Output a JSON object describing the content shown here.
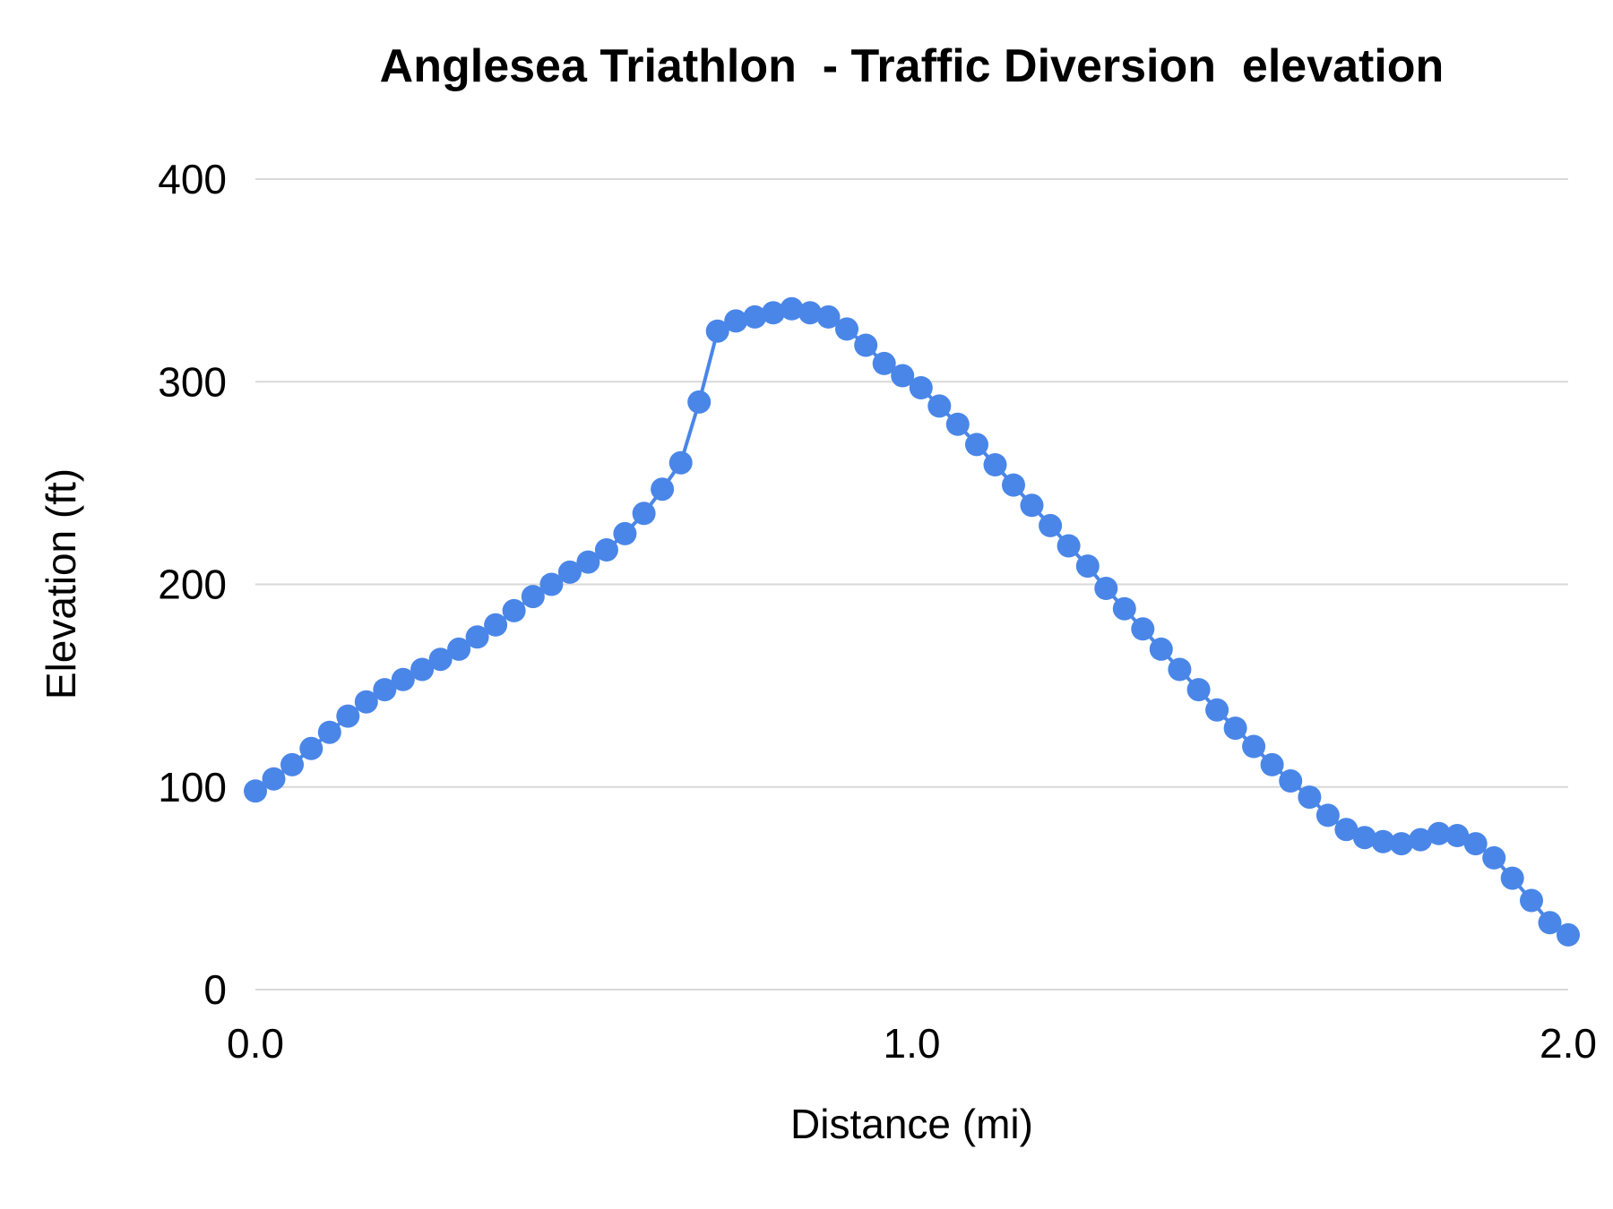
{
  "page": {
    "background": "#ffffff"
  },
  "chart_data": {
    "type": "line",
    "title": "Anglesea Triathlon  - Traffic Diversion  elevation",
    "xlabel": "Distance (mi)",
    "ylabel": "Elevation (ft)",
    "xlim": [
      0,
      2
    ],
    "ylim": [
      0,
      400
    ],
    "grid": true,
    "legend": "none",
    "grid_color": "#d9d9d9",
    "text_color": "#000000",
    "x_ticks": [
      {
        "value": 0,
        "label": "0.0"
      },
      {
        "value": 1,
        "label": "1.0"
      },
      {
        "value": 2,
        "label": "2.0"
      }
    ],
    "y_ticks": [
      {
        "value": 0,
        "label": "0"
      },
      {
        "value": 100,
        "label": "100"
      },
      {
        "value": 200,
        "label": "200"
      },
      {
        "value": 300,
        "label": "300"
      },
      {
        "value": 400,
        "label": "400"
      }
    ],
    "series": [
      {
        "name": "elevation",
        "color": "#4a86e8",
        "marker_radius": 13,
        "points": [
          [
            0.0,
            98
          ],
          [
            0.028,
            104
          ],
          [
            0.056,
            111
          ],
          [
            0.085,
            119
          ],
          [
            0.113,
            127
          ],
          [
            0.141,
            135
          ],
          [
            0.169,
            142
          ],
          [
            0.197,
            148
          ],
          [
            0.225,
            153
          ],
          [
            0.254,
            158
          ],
          [
            0.282,
            163
          ],
          [
            0.31,
            168
          ],
          [
            0.338,
            174
          ],
          [
            0.366,
            180
          ],
          [
            0.394,
            187
          ],
          [
            0.423,
            194
          ],
          [
            0.451,
            200
          ],
          [
            0.479,
            206
          ],
          [
            0.507,
            211
          ],
          [
            0.535,
            217
          ],
          [
            0.563,
            225
          ],
          [
            0.592,
            235
          ],
          [
            0.62,
            247
          ],
          [
            0.648,
            260
          ],
          [
            0.676,
            290
          ],
          [
            0.704,
            325
          ],
          [
            0.732,
            330
          ],
          [
            0.761,
            332
          ],
          [
            0.789,
            334
          ],
          [
            0.817,
            336
          ],
          [
            0.845,
            334
          ],
          [
            0.873,
            332
          ],
          [
            0.901,
            326
          ],
          [
            0.93,
            318
          ],
          [
            0.958,
            309
          ],
          [
            0.986,
            303
          ],
          [
            1.014,
            297
          ],
          [
            1.042,
            288
          ],
          [
            1.07,
            279
          ],
          [
            1.099,
            269
          ],
          [
            1.127,
            259
          ],
          [
            1.155,
            249
          ],
          [
            1.183,
            239
          ],
          [
            1.211,
            229
          ],
          [
            1.239,
            219
          ],
          [
            1.268,
            209
          ],
          [
            1.296,
            198
          ],
          [
            1.324,
            188
          ],
          [
            1.352,
            178
          ],
          [
            1.38,
            168
          ],
          [
            1.408,
            158
          ],
          [
            1.437,
            148
          ],
          [
            1.465,
            138
          ],
          [
            1.493,
            129
          ],
          [
            1.521,
            120
          ],
          [
            1.549,
            111
          ],
          [
            1.577,
            103
          ],
          [
            1.606,
            95
          ],
          [
            1.634,
            86
          ],
          [
            1.662,
            79
          ],
          [
            1.69,
            75
          ],
          [
            1.718,
            73
          ],
          [
            1.746,
            72
          ],
          [
            1.775,
            74
          ],
          [
            1.803,
            77
          ],
          [
            1.831,
            76
          ],
          [
            1.859,
            72
          ],
          [
            1.887,
            65
          ],
          [
            1.915,
            55
          ],
          [
            1.944,
            44
          ],
          [
            1.972,
            33
          ],
          [
            2.0,
            27
          ]
        ]
      }
    ]
  }
}
